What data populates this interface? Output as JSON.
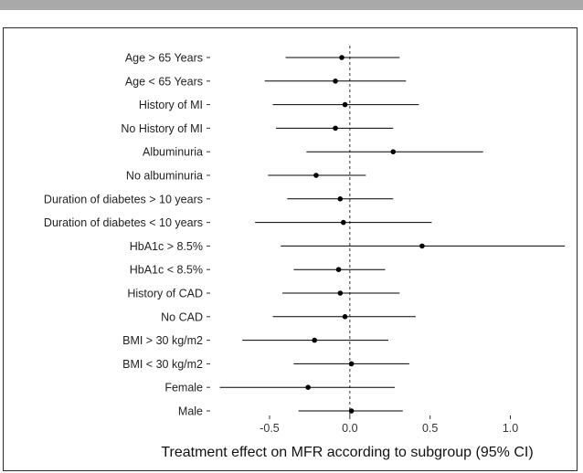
{
  "chart_data": {
    "type": "forest",
    "title": "",
    "xlabel": "Treatment effect on MFR according to subgroup (95% CI)",
    "ylabel": "",
    "xlim": [
      -0.87,
      1.35
    ],
    "xticks": [
      -0.5,
      0.0,
      0.5,
      1.0
    ],
    "xtick_labels": [
      "-0.5",
      "0.0",
      "0.5",
      "1.0"
    ],
    "reference_line": 0,
    "grid": false,
    "colors": {
      "point": "#000000",
      "line": "#000000",
      "reference": "#333333"
    },
    "rows": [
      {
        "label": "Age > 65 Years",
        "estimate": -0.05,
        "lower": -0.4,
        "upper": 0.31
      },
      {
        "label": "Age < 65 Years",
        "estimate": -0.09,
        "lower": -0.53,
        "upper": 0.35
      },
      {
        "label": "History of MI",
        "estimate": -0.03,
        "lower": -0.48,
        "upper": 0.43
      },
      {
        "label": "No History of MI",
        "estimate": -0.09,
        "lower": -0.46,
        "upper": 0.27
      },
      {
        "label": "Albuminuria",
        "estimate": 0.27,
        "lower": -0.27,
        "upper": 0.83
      },
      {
        "label": "No albuminuria",
        "estimate": -0.21,
        "lower": -0.51,
        "upper": 0.1
      },
      {
        "label": "Duration of diabetes > 10 years",
        "estimate": -0.06,
        "lower": -0.39,
        "upper": 0.27
      },
      {
        "label": "Duration of diabetes < 10 years",
        "estimate": -0.04,
        "lower": -0.59,
        "upper": 0.51
      },
      {
        "label": "HbA1c > 8.5%",
        "estimate": 0.45,
        "lower": -0.43,
        "upper": 1.34
      },
      {
        "label": "HbA1c < 8.5%",
        "estimate": -0.07,
        "lower": -0.35,
        "upper": 0.22
      },
      {
        "label": "History of CAD",
        "estimate": -0.06,
        "lower": -0.42,
        "upper": 0.31
      },
      {
        "label": "No CAD",
        "estimate": -0.03,
        "lower": -0.48,
        "upper": 0.41
      },
      {
        "label": "BMI > 30 kg/m2",
        "estimate": -0.22,
        "lower": -0.67,
        "upper": 0.24
      },
      {
        "label": "BMI < 30 kg/m2",
        "estimate": 0.01,
        "lower": -0.35,
        "upper": 0.37
      },
      {
        "label": "Female",
        "estimate": -0.26,
        "lower": -0.81,
        "upper": 0.28
      },
      {
        "label": "Male",
        "estimate": 0.01,
        "lower": -0.32,
        "upper": 0.33
      }
    ]
  }
}
